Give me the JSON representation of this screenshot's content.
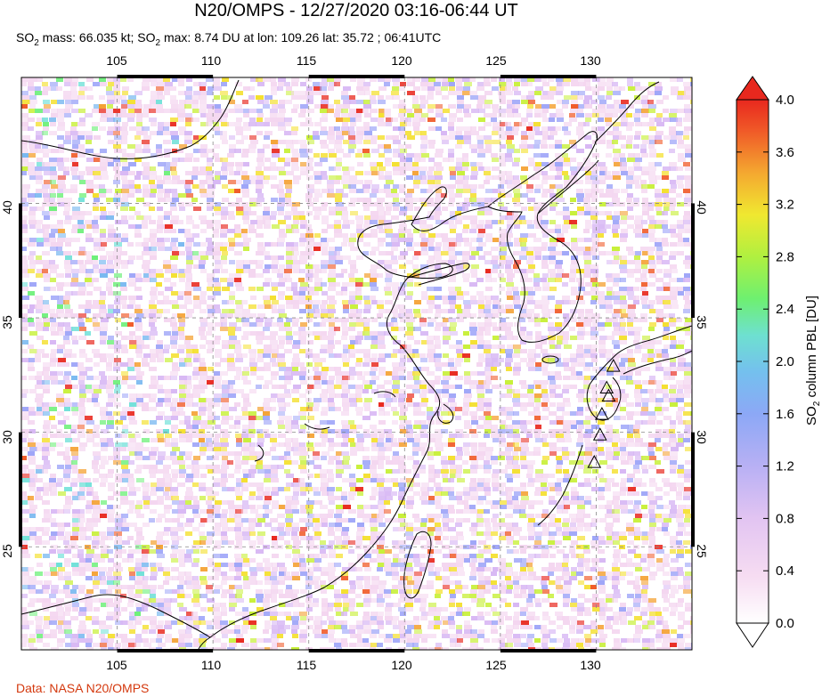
{
  "title": "N20/OMPS - 12/27/2020 03:16-06:44 UT",
  "subtitle": {
    "so2_a": "SO",
    "sub_a": "2",
    "mass_text": " mass: 66.035 kt; SO",
    "sub_b": "2",
    "max_text": " max: 8.74 DU at lon: 109.26 lat: 35.72 ; 06:41UTC"
  },
  "credit": "Data: NASA N20/OMPS",
  "map": {
    "lon_range": [
      100,
      135
    ],
    "lat_range": [
      20.5,
      45.5
    ],
    "lon_ticks": [
      "105",
      "110",
      "115",
      "120",
      "125",
      "130"
    ],
    "lat_ticks": [
      "40",
      "35",
      "30",
      "25"
    ],
    "gridlines": "dashed",
    "volcano_markers": "triangles"
  },
  "colorbar": {
    "label_a": "SO",
    "label_sub": "2",
    "label_b": " column PBL [DU]",
    "ticks": [
      "4.0",
      "3.6",
      "3.2",
      "2.8",
      "2.4",
      "2.0",
      "1.6",
      "1.2",
      "0.8",
      "0.4",
      "0.0"
    ],
    "range": [
      0.0,
      4.0
    ],
    "colors": [
      "#ffffff",
      "#f4d6f0",
      "#d8b8f4",
      "#9fa6f8",
      "#78b8f0",
      "#70e0d8",
      "#6ef07a",
      "#c8f03a",
      "#f4e030",
      "#f4a030",
      "#f05a28",
      "#e8281e"
    ],
    "extend": "both"
  }
}
